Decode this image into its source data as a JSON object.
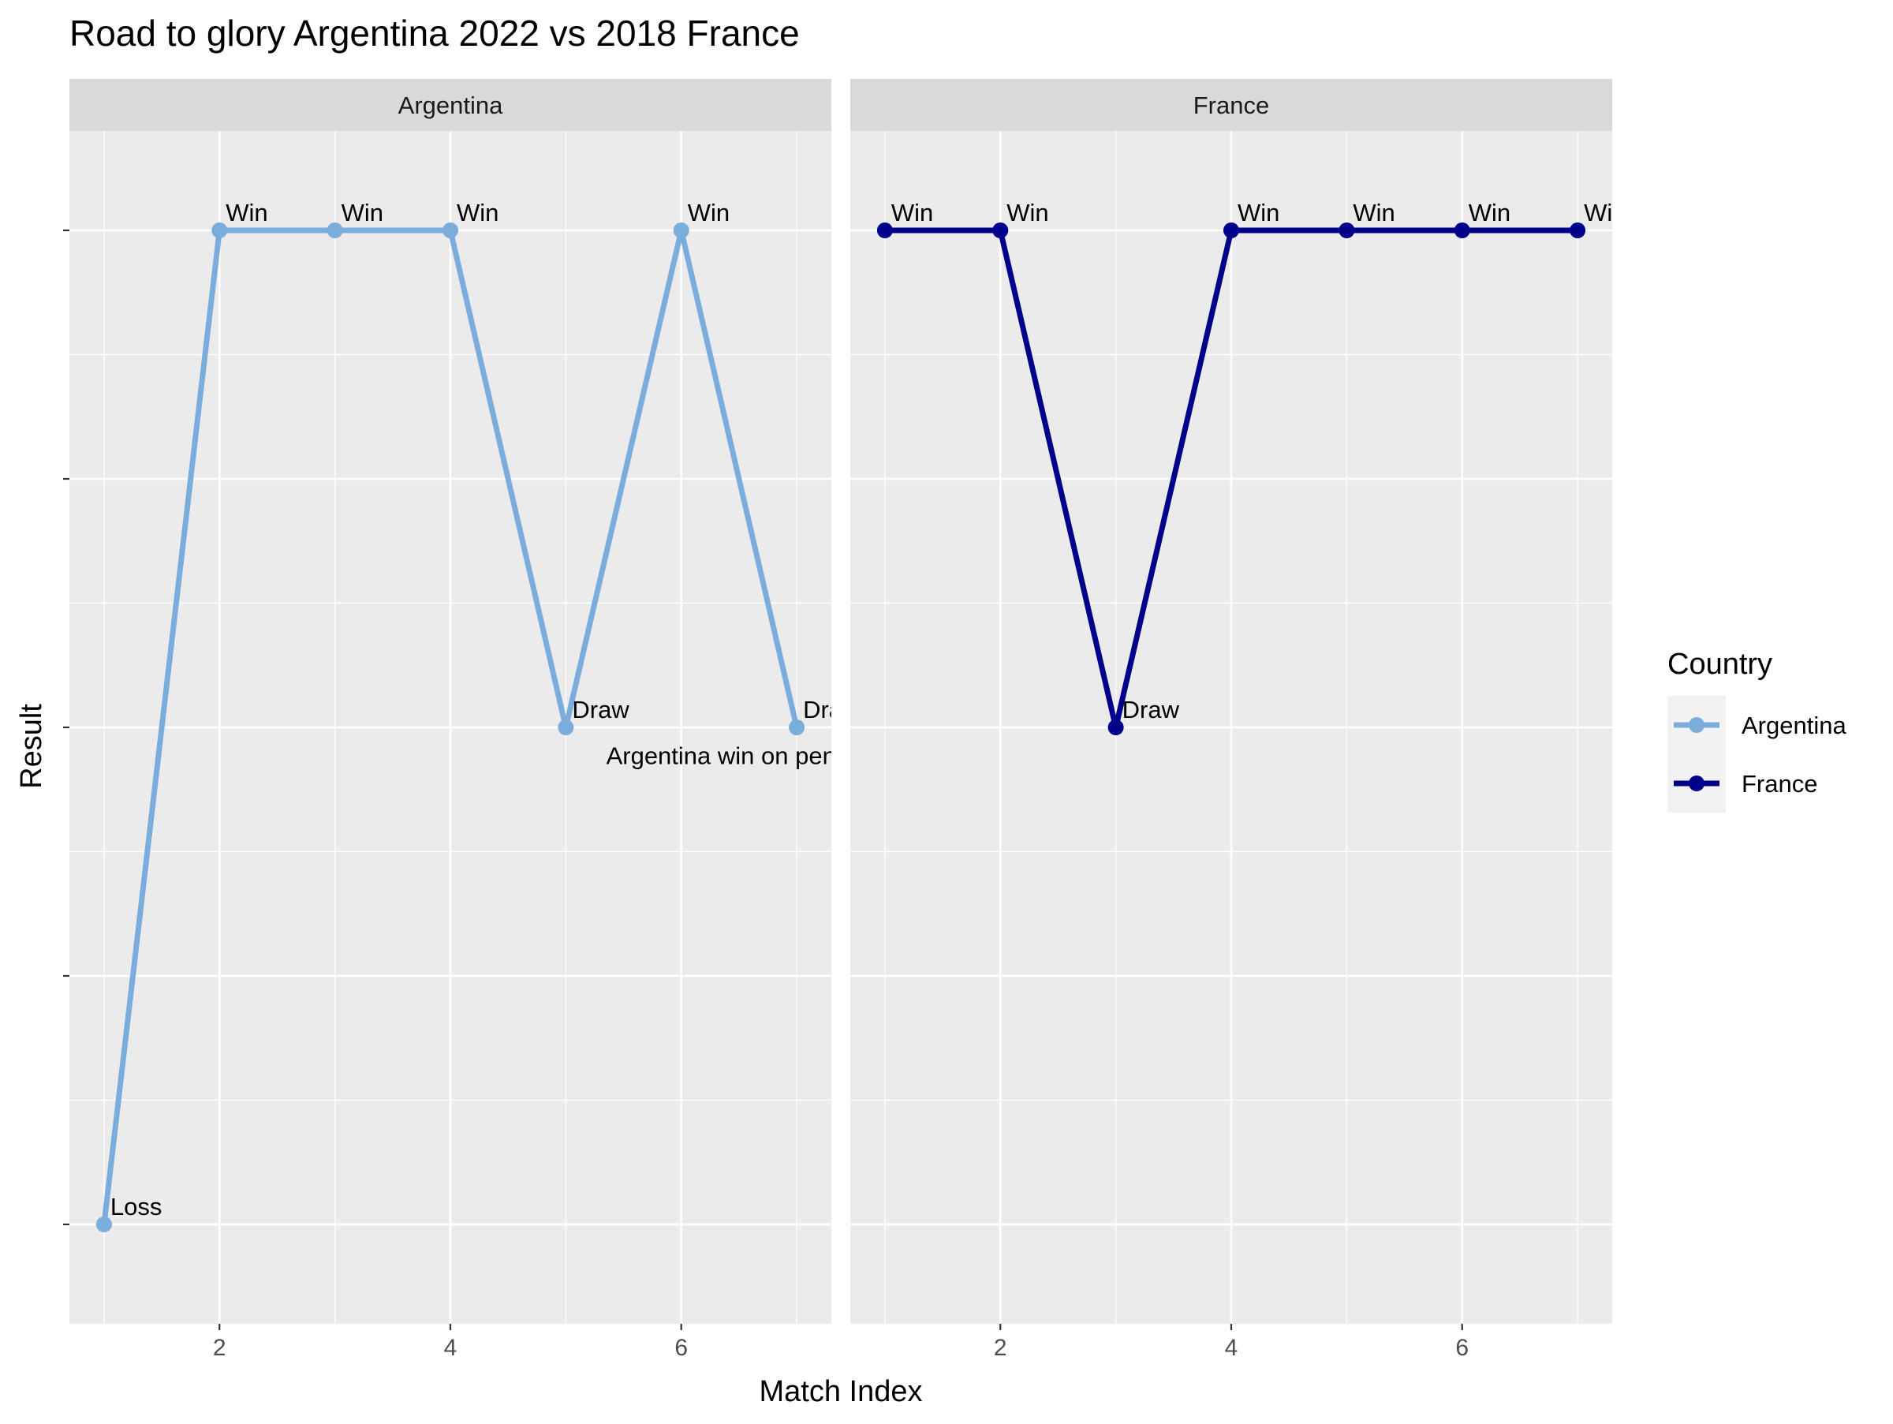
{
  "chart_data": {
    "type": "line",
    "title": "Road to glory Argentina 2022 vs 2018 France",
    "xlabel": "Match Index",
    "ylabel": "Result",
    "xlim": [
      0.7,
      7.3
    ],
    "ylim": [
      0.8,
      3.2
    ],
    "x_ticks": [
      2,
      4,
      6
    ],
    "x_minor_ticks": [
      1,
      3,
      5,
      7
    ],
    "y_levels": [
      1,
      2,
      3
    ],
    "y_tick_labels": [
      "",
      "",
      "",
      "",
      ""
    ],
    "legend": {
      "title": "Country",
      "position": "right",
      "entries": [
        "Argentina",
        "France"
      ]
    },
    "panels": [
      {
        "strip": "Argentina",
        "series_name": "Argentina",
        "color": "#7aaddb",
        "x": [
          1,
          2,
          3,
          4,
          5,
          6,
          7
        ],
        "y": [
          1,
          3,
          3,
          3,
          2,
          3,
          2
        ],
        "labels": [
          "Loss",
          "Win",
          "Win",
          "Win",
          "Draw",
          "Win",
          "Draw"
        ],
        "annotation": {
          "text": "Argentina win on penalties",
          "x": 5.35,
          "y": 1.95
        }
      },
      {
        "strip": "France",
        "series_name": "France",
        "color": "#00008b",
        "x": [
          1,
          2,
          3,
          4,
          5,
          6,
          7
        ],
        "y": [
          3,
          3,
          2,
          3,
          3,
          3,
          3
        ],
        "labels": [
          "Win",
          "Win",
          "Draw",
          "Win",
          "Win",
          "Win",
          "Win"
        ]
      }
    ]
  }
}
